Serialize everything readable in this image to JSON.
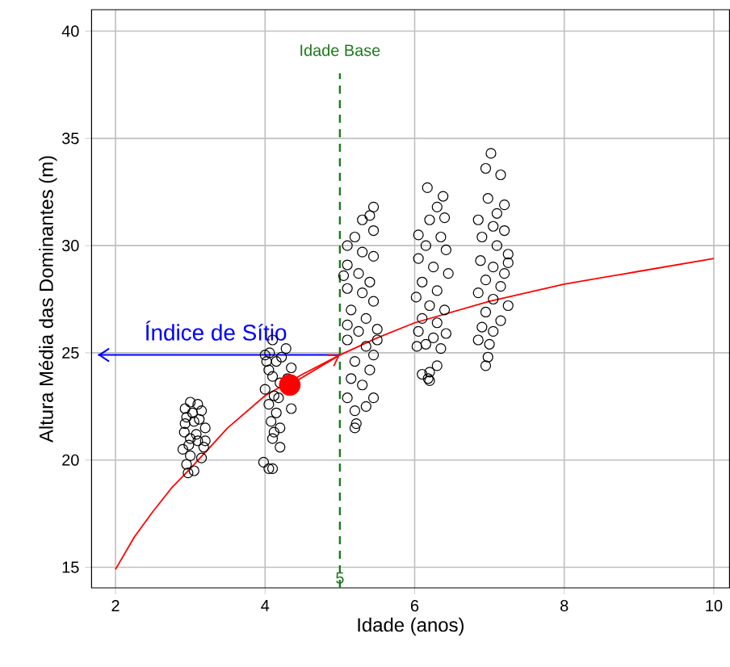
{
  "chart_data": {
    "type": "scatter",
    "xlabel": "Idade (anos)",
    "ylabel": "Altura Média das Dominantes (m)",
    "xlim": [
      1.68,
      10.21
    ],
    "ylim": [
      14.04,
      41
    ],
    "xticks": [
      2,
      4,
      6,
      8,
      10
    ],
    "yticks": [
      15,
      20,
      25,
      30,
      35,
      40
    ],
    "grid": true,
    "marker": "circle",
    "series": [
      {
        "color": "#000000",
        "x": [
          3.0,
          2.93,
          3.1,
          3.15,
          2.95,
          3.05,
          3.2,
          2.92,
          3.0,
          3.1,
          3.18,
          2.9,
          3.0,
          3.15,
          2.95,
          2.97,
          3.05,
          3.12,
          3.08,
          2.98,
          3.2,
          2.93,
          3.03,
          4.1,
          4.28,
          4.0,
          4.15,
          4.05,
          4.35,
          4.1,
          4.2,
          4.0,
          4.12,
          4.05,
          4.15,
          4.35,
          4.08,
          4.2,
          4.1,
          4.2,
          3.98,
          4.05,
          4.1,
          4.02,
          4.22,
          4.3,
          4.18,
          4.12,
          4.06,
          5.45,
          5.4,
          5.3,
          5.45,
          5.2,
          5.1,
          5.3,
          5.45,
          5.1,
          5.25,
          5.4,
          5.1,
          5.3,
          5.45,
          5.15,
          5.35,
          5.1,
          5.25,
          5.5,
          5.1,
          5.35,
          5.45,
          5.2,
          5.4,
          5.15,
          5.3,
          5.45,
          5.1,
          5.35,
          5.2,
          5.2,
          5.22,
          5.05,
          5.5,
          6.17,
          6.38,
          6.3,
          6.2,
          6.4,
          6.05,
          6.35,
          6.15,
          6.42,
          6.05,
          6.25,
          6.45,
          6.1,
          6.3,
          6.02,
          6.2,
          6.4,
          6.1,
          6.3,
          6.05,
          6.25,
          6.42,
          6.15,
          6.35,
          6.03,
          6.2,
          6.1,
          6.18,
          6.2,
          6.3,
          7.02,
          6.95,
          7.15,
          6.98,
          7.2,
          7.1,
          6.85,
          7.05,
          7.2,
          6.9,
          7.1,
          7.25,
          6.88,
          7.05,
          7.2,
          6.95,
          7.15,
          6.85,
          7.05,
          7.25,
          6.95,
          7.15,
          6.9,
          7.05,
          6.85,
          7.0,
          6.98,
          6.95,
          7.25
        ],
        "values": [
          22.7,
          22.4,
          22.6,
          22.3,
          22.0,
          21.8,
          21.5,
          21.3,
          21.0,
          20.9,
          20.6,
          20.5,
          20.2,
          20.1,
          19.8,
          19.4,
          19.5,
          21.9,
          21.2,
          20.7,
          20.9,
          21.7,
          22.2,
          25.6,
          25.2,
          24.9,
          24.6,
          24.2,
          24.3,
          23.9,
          23.6,
          23.3,
          23.0,
          22.6,
          22.2,
          22.4,
          21.8,
          21.5,
          21.0,
          20.6,
          19.9,
          19.6,
          19.6,
          24.6,
          24.8,
          23.8,
          22.9,
          21.3,
          25.0,
          31.8,
          31.4,
          31.2,
          30.7,
          30.4,
          30.0,
          29.7,
          29.5,
          29.1,
          28.7,
          28.3,
          28.0,
          27.8,
          27.4,
          27.0,
          26.6,
          26.3,
          26.0,
          26.1,
          25.6,
          25.3,
          24.9,
          24.6,
          24.2,
          23.8,
          23.5,
          22.9,
          22.9,
          22.5,
          22.3,
          21.5,
          21.7,
          28.6,
          25.6,
          32.7,
          32.3,
          31.8,
          31.2,
          31.3,
          30.5,
          30.4,
          30.0,
          29.8,
          29.4,
          29.0,
          28.7,
          28.3,
          27.9,
          27.6,
          27.2,
          27.0,
          26.6,
          26.4,
          26.0,
          25.7,
          25.9,
          25.4,
          25.2,
          25.3,
          24.1,
          24.0,
          23.8,
          23.7,
          24.4,
          34.3,
          33.6,
          33.3,
          32.2,
          31.9,
          31.5,
          31.2,
          30.9,
          30.7,
          30.4,
          30.0,
          29.6,
          29.3,
          29.0,
          28.7,
          28.4,
          28.1,
          27.8,
          27.5,
          27.2,
          26.9,
          26.5,
          26.2,
          26.0,
          25.6,
          25.4,
          24.8,
          24.4,
          29.2
        ]
      },
      {
        "type": "line",
        "marker": "none",
        "color": "#ff0000",
        "x": [
          2,
          2.25,
          2.5,
          2.75,
          3,
          3.5,
          4,
          4.5,
          5,
          5.5,
          6,
          7,
          8,
          9,
          10
        ],
        "values": [
          14.9,
          16.4,
          17.6,
          18.7,
          19.6,
          21.5,
          23.0,
          24.0,
          24.9,
          25.7,
          26.4,
          27.4,
          28.2,
          28.8,
          29.4
        ]
      },
      {
        "type": "bubble",
        "color": "#ff0000",
        "x": [
          4.33
        ],
        "values": [
          23.5
        ],
        "sizes": [
          1
        ]
      }
    ],
    "ref_lines": [
      {
        "axis": "x",
        "value": 5,
        "label": "Idade Base",
        "color": "#1e7a1e",
        "line_style": "dashed"
      },
      {
        "axis": "y",
        "value": 24.9,
        "label": "Índice de Sítio",
        "color": "#0000ff"
      }
    ],
    "annotations": [
      {
        "text": "5",
        "x": 5,
        "y": 14.5
      }
    ]
  }
}
